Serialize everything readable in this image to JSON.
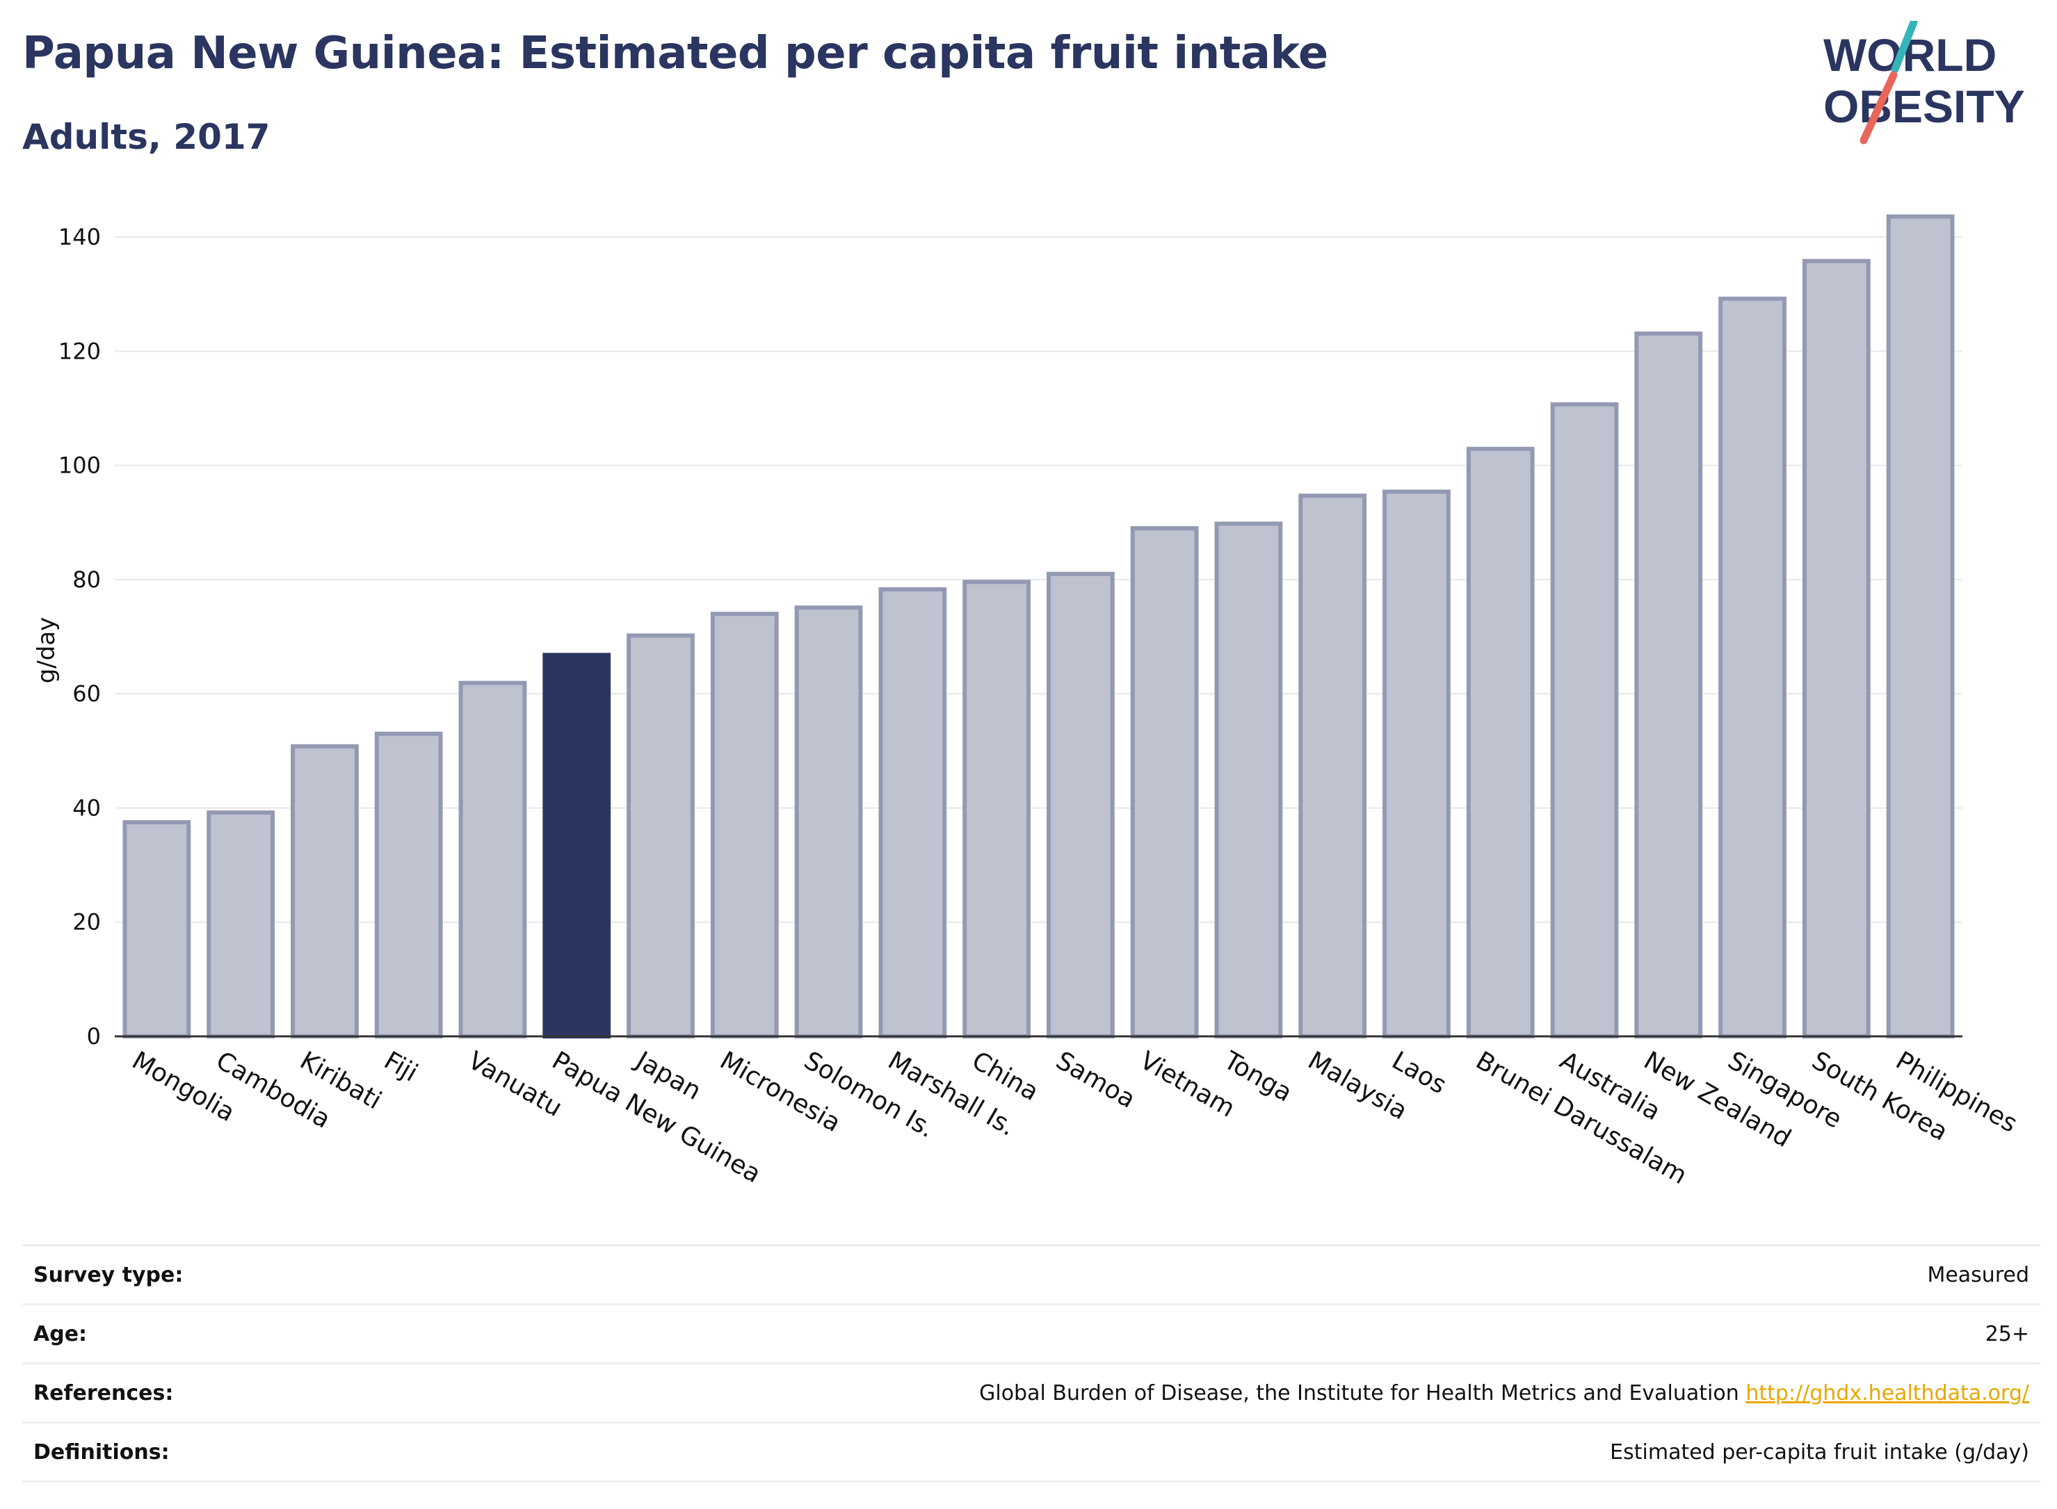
{
  "header": {
    "title": "Papua New Guinea: Estimated per capita fruit intake",
    "subtitle": "Adults, 2017"
  },
  "logo": {
    "line1": "WORLD",
    "line2": "OBESITY",
    "colors": {
      "text": "#2a3560",
      "slash_teal": "#35b5b8",
      "slash_red": "#e8665a"
    }
  },
  "chart_data": {
    "type": "bar",
    "title": "",
    "xlabel": "",
    "ylabel": "g/day",
    "ylim": [
      0,
      145
    ],
    "yticks": [
      0,
      20,
      40,
      60,
      80,
      100,
      120,
      140
    ],
    "grid": true,
    "highlight": "Papua New Guinea",
    "categories": [
      "Mongolia",
      "Cambodia",
      "Kiribati",
      "Fiji",
      "Vanuatu",
      "Papua New Guinea",
      "Japan",
      "Micronesia",
      "Solomon Is.",
      "Marshall Is.",
      "China",
      "Samoa",
      "Vietnam",
      "Tonga",
      "Malaysia",
      "Laos",
      "Brunei Darussalam",
      "Australia",
      "New Zealand",
      "Singapore",
      "South Korea",
      "Philippines"
    ],
    "values": [
      37.5,
      39.2,
      50.8,
      53.0,
      61.9,
      66.8,
      70.2,
      74.0,
      75.1,
      78.3,
      79.6,
      81.0,
      89.0,
      89.8,
      94.7,
      95.4,
      102.9,
      110.7,
      123.1,
      129.2,
      135.8,
      143.6
    ],
    "colors": {
      "bar": "#bfc2cf",
      "bar_edge": "#9499b3",
      "highlight": "#2a3560"
    }
  },
  "meta": [
    {
      "label": "Survey type:",
      "value": "Measured"
    },
    {
      "label": "Age:",
      "value": "25+"
    },
    {
      "label": "References:",
      "value": "Global Burden of Disease, the Institute for Health Metrics and Evaluation",
      "link": "http://ghdx.healthdata.org/"
    },
    {
      "label": "Definitions:",
      "value": "Estimated per-capita fruit intake (g/day)"
    }
  ]
}
